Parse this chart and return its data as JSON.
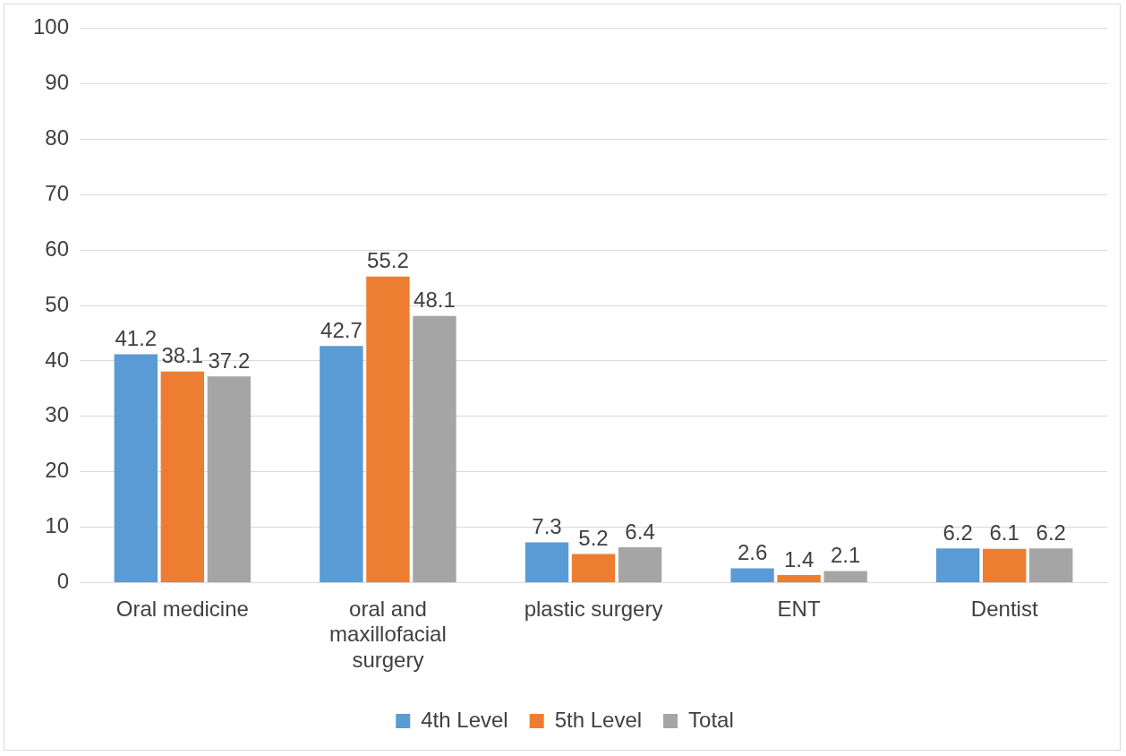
{
  "chart_data": {
    "type": "bar",
    "categories": [
      "Oral medicine",
      "oral and maxillofacial surgery",
      "plastic surgery",
      "ENT",
      "Dentist"
    ],
    "series": [
      {
        "name": "4th Level",
        "color": "#5b9bd5",
        "values": [
          41.2,
          42.7,
          7.3,
          2.6,
          6.2
        ]
      },
      {
        "name": "5th Level",
        "color": "#ed7d31",
        "values": [
          38.1,
          55.2,
          5.2,
          1.4,
          6.1
        ]
      },
      {
        "name": "Total",
        "color": "#a5a5a5",
        "values": [
          37.2,
          48.1,
          6.4,
          2.1,
          6.2
        ]
      }
    ],
    "ylim": [
      0,
      100
    ],
    "yticks": [
      0,
      10,
      20,
      30,
      40,
      50,
      60,
      70,
      80,
      90,
      100
    ],
    "grid": "y",
    "legend": "bottom",
    "data_labels": true
  }
}
